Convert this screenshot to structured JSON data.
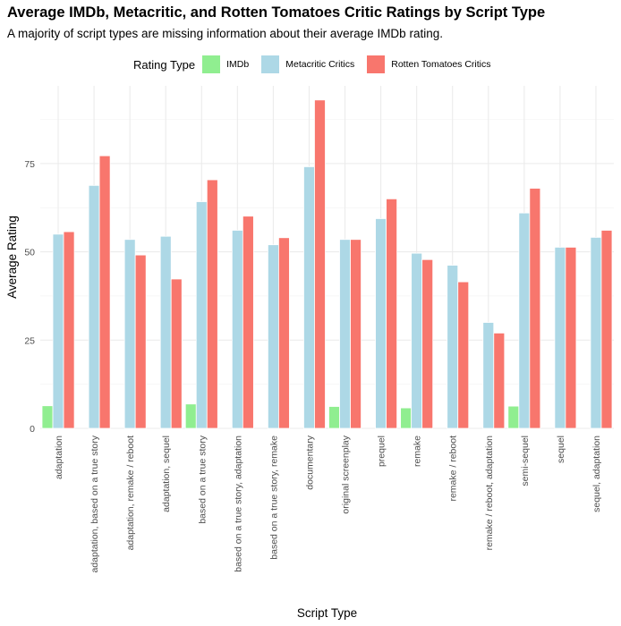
{
  "chart_data": {
    "type": "bar",
    "title": "Average IMDb, Metacritic, and Rotten Tomatoes Critic Ratings by Script Type",
    "subtitle": "A majority of script types are missing information about their average IMDb rating.",
    "xlabel": "Script Type",
    "ylabel": "Average Rating",
    "legend_title": "Rating Type",
    "legend_position": "top",
    "grid": true,
    "ylim": [
      0,
      97
    ],
    "yticks": [
      0,
      25,
      50,
      75
    ],
    "categories": [
      "adaptation",
      "adaptation, based on a true story",
      "adaptation, remake / reboot",
      "adaptation, sequel",
      "based on a true story",
      "based on a true story, adaptation",
      "based on a true story, remake",
      "documentary",
      "original screenplay",
      "prequel",
      "remake",
      "remake / reboot",
      "remake / reboot, adaptation",
      "semi-sequel",
      "sequel",
      "sequel, adaptation"
    ],
    "series": [
      {
        "name": "IMDb",
        "color": "#90EE90",
        "values": [
          6.4,
          null,
          null,
          null,
          6.9,
          null,
          null,
          null,
          6.2,
          null,
          5.8,
          null,
          null,
          6.3,
          null,
          null
        ]
      },
      {
        "name": "Metacritic Critics",
        "color": "#ADD8E6",
        "values": [
          55,
          68.8,
          53.5,
          54.4,
          64.2,
          56.1,
          52,
          74.1,
          53.5,
          59.4,
          49.6,
          46.2,
          30,
          61,
          51.3,
          54.1
        ]
      },
      {
        "name": "Rotten Tomatoes Critics",
        "color": "#F8766D",
        "values": [
          55.7,
          77.2,
          49.1,
          42.3,
          70.4,
          60.1,
          54,
          93,
          53.5,
          65,
          47.8,
          41.5,
          27,
          68,
          51.3,
          56.1
        ]
      }
    ]
  }
}
